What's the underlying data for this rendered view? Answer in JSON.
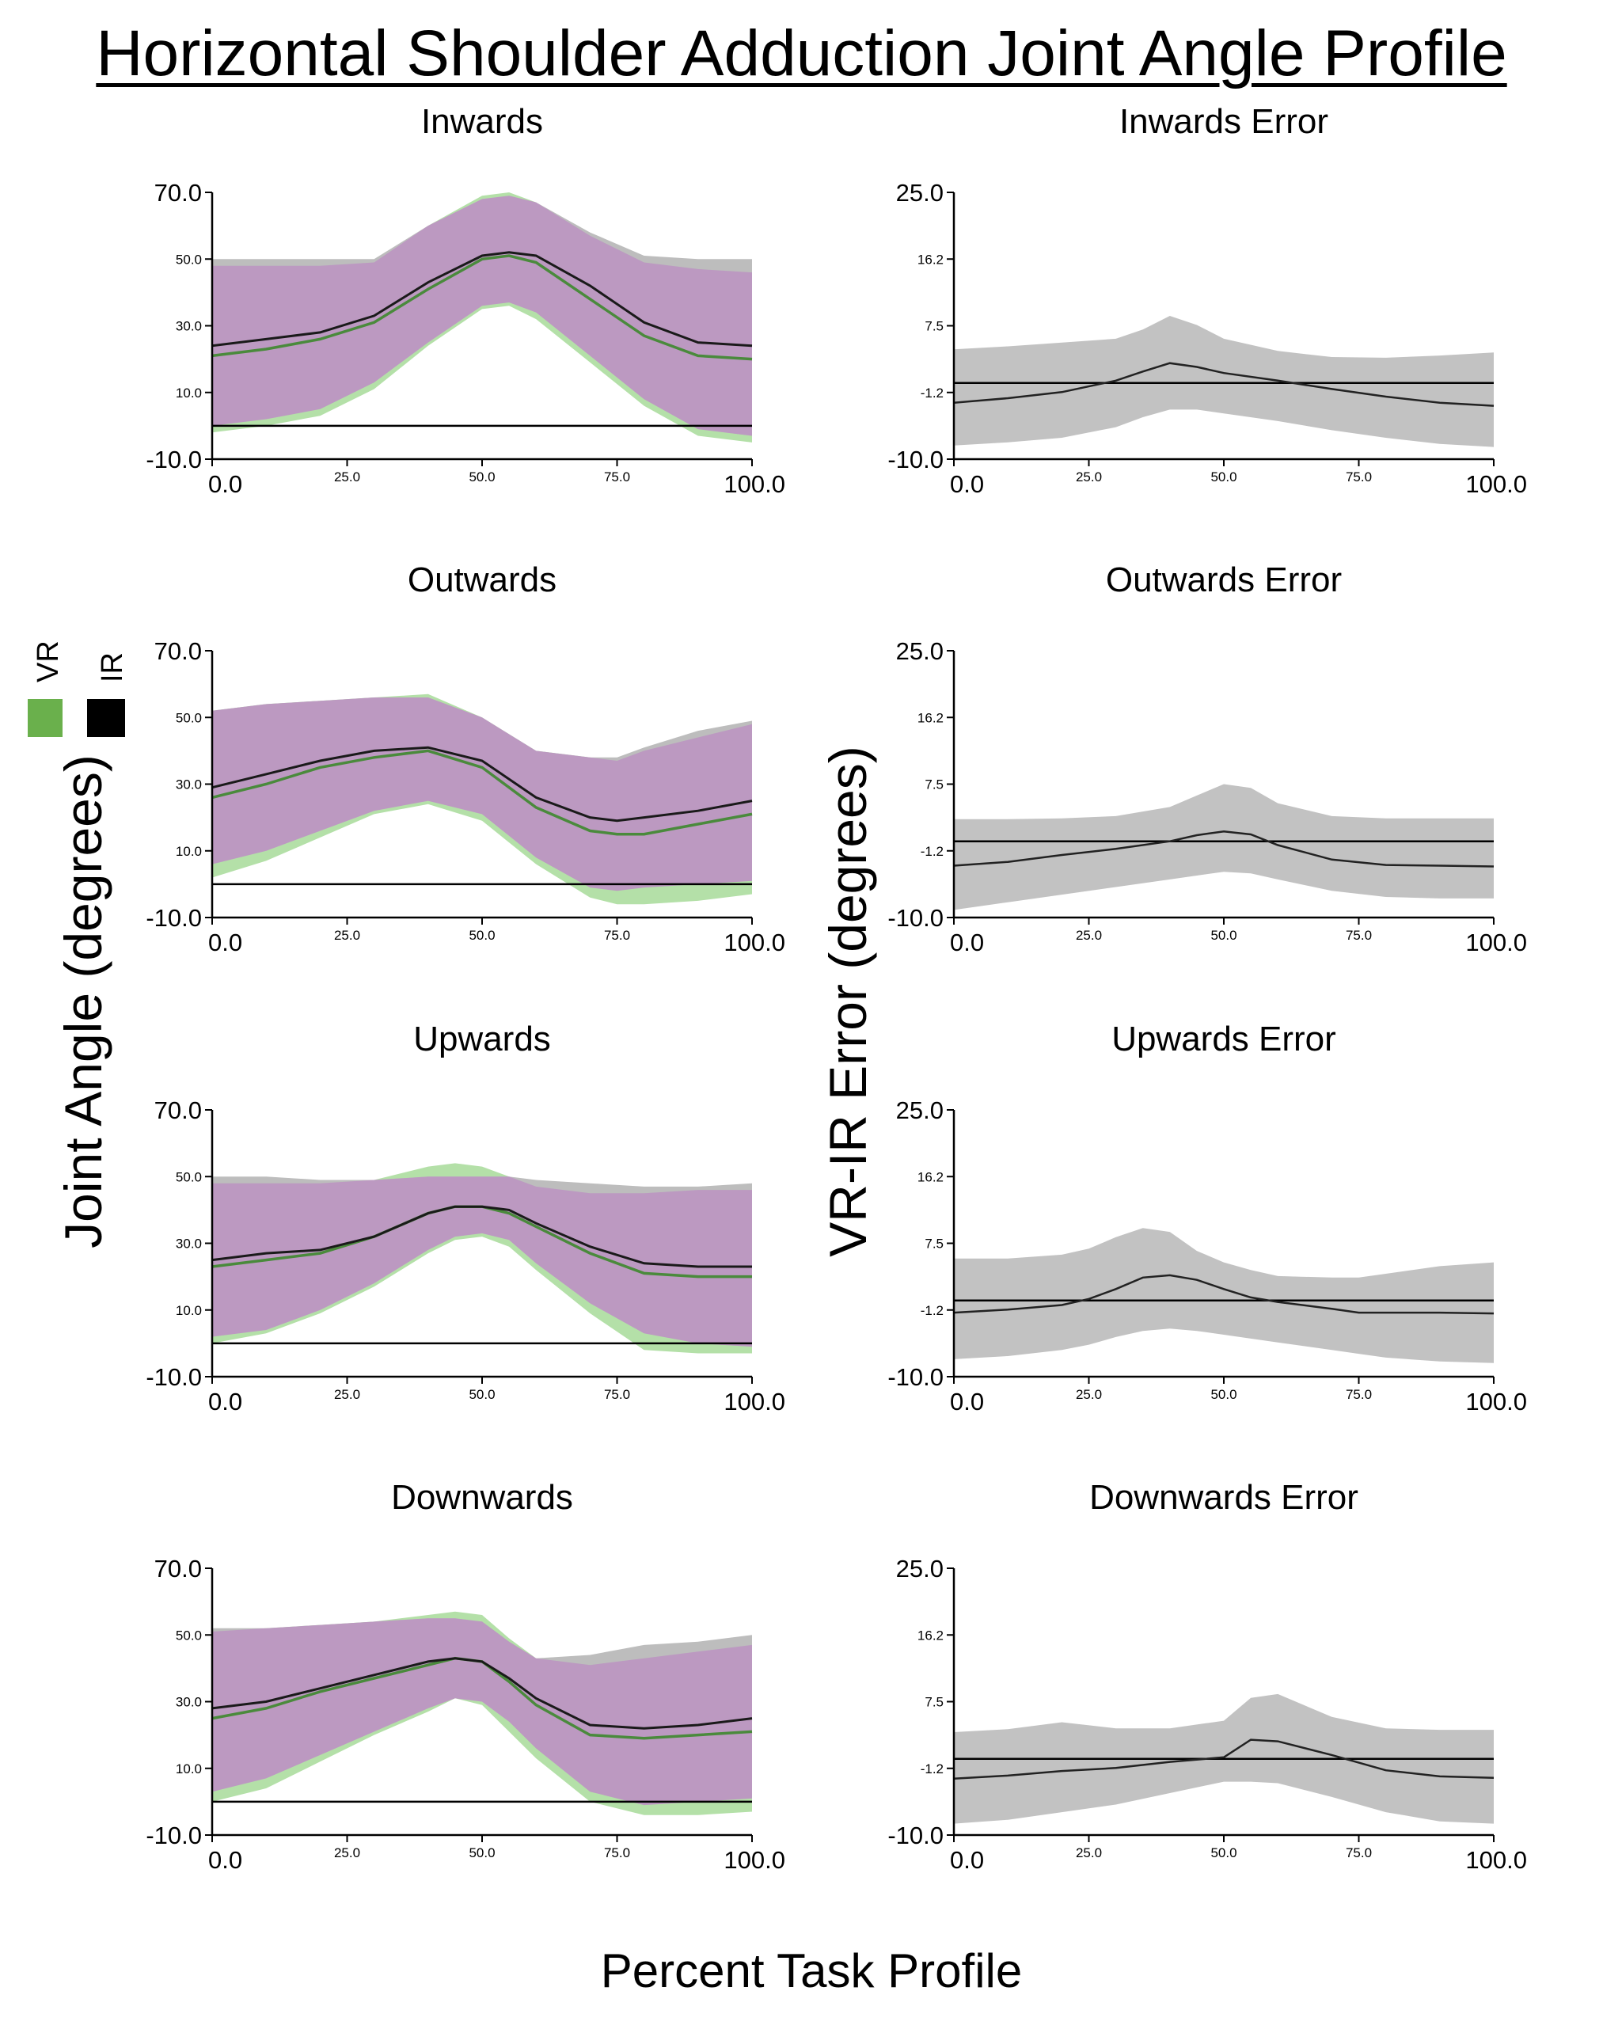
{
  "figure_title": "Horizontal Shoulder Adduction Joint Angle Profile",
  "x_axis_label": "Percent Task Profile",
  "left_axis_label": "Joint Angle (degrees)",
  "right_axis_label": "VR-IR Error (degrees)",
  "legend": [
    {
      "label": "VR",
      "color": "#6ab04c"
    },
    {
      "label": "IR",
      "color": "#000000"
    }
  ],
  "colors": {
    "vr_band": "#b4e0a8",
    "ir_band": "#bdbdbd",
    "overlap_band": "#bc99c1",
    "vr_line": "#4a8a3c",
    "ir_line": "#1a1a1a",
    "error_band": "#c2c2c2",
    "error_line": "#222222",
    "reference_line": "#000000"
  },
  "chart_data": [
    {
      "type": "line",
      "id": "inwards",
      "title": "Inwards",
      "panel": "angle",
      "x": [
        0,
        10,
        20,
        30,
        40,
        50,
        55,
        60,
        70,
        80,
        90,
        100
      ],
      "xlim": [
        0,
        100
      ],
      "ylim": [
        -10,
        70
      ],
      "xticks": [
        "0.0",
        "25.0",
        "50.0",
        "75.0",
        "100.0"
      ],
      "yticks": [
        "-10.0",
        "10.0",
        "30.0",
        "50.0",
        "70.0"
      ],
      "reference_line": 0,
      "series": [
        {
          "name": "VR mean",
          "values": [
            21,
            23,
            26,
            31,
            41,
            50,
            51,
            49,
            38,
            27,
            21,
            20
          ],
          "upper": [
            48,
            48,
            48,
            49,
            60,
            69,
            70,
            67,
            57,
            49,
            47,
            46
          ],
          "lower": [
            -2,
            0,
            3,
            11,
            24,
            35,
            36,
            32,
            19,
            6,
            -3,
            -5
          ]
        },
        {
          "name": "IR mean",
          "values": [
            24,
            26,
            28,
            33,
            43,
            51,
            52,
            51,
            42,
            31,
            25,
            24
          ],
          "upper": [
            50,
            50,
            50,
            50,
            60,
            68,
            69,
            67,
            58,
            51,
            50,
            50
          ],
          "lower": [
            0,
            2,
            5,
            13,
            25,
            36,
            37,
            34,
            21,
            8,
            -1,
            -3
          ]
        }
      ]
    },
    {
      "type": "line",
      "id": "inwards-error",
      "title": "Inwards Error",
      "panel": "error",
      "x": [
        0,
        10,
        20,
        30,
        35,
        40,
        45,
        50,
        60,
        70,
        80,
        90,
        100
      ],
      "xlim": [
        0,
        100
      ],
      "ylim": [
        -10,
        25
      ],
      "xticks": [
        "0.0",
        "25.0",
        "50.0",
        "75.0",
        "100.0"
      ],
      "yticks": [
        "-10.0",
        "-1.2",
        "7.5",
        "16.2",
        "25.0"
      ],
      "reference_line": 0,
      "series": [
        {
          "name": "VR-IR error",
          "values": [
            -2.6,
            -2.0,
            -1.2,
            0.3,
            1.5,
            2.6,
            2.1,
            1.3,
            0.3,
            -0.8,
            -1.8,
            -2.6,
            -3.0
          ],
          "upper": [
            4.4,
            4.8,
            5.3,
            5.8,
            7.0,
            8.8,
            7.6,
            5.8,
            4.2,
            3.4,
            3.3,
            3.6,
            4.0
          ],
          "lower": [
            -8.2,
            -7.8,
            -7.2,
            -5.8,
            -4.5,
            -3.5,
            -3.5,
            -4.0,
            -5.0,
            -6.2,
            -7.2,
            -8.0,
            -8.4
          ]
        }
      ]
    },
    {
      "type": "line",
      "id": "outwards",
      "title": "Outwards",
      "panel": "angle",
      "x": [
        0,
        10,
        20,
        30,
        40,
        50,
        60,
        70,
        75,
        80,
        90,
        100
      ],
      "xlim": [
        0,
        100
      ],
      "ylim": [
        -10,
        70
      ],
      "xticks": [
        "0.0",
        "25.0",
        "50.0",
        "75.0",
        "100.0"
      ],
      "yticks": [
        "-10.0",
        "10.0",
        "30.0",
        "50.0",
        "70.0"
      ],
      "reference_line": 0,
      "series": [
        {
          "name": "VR mean",
          "values": [
            26,
            30,
            35,
            38,
            40,
            35,
            23,
            16,
            15,
            15,
            18,
            21
          ],
          "upper": [
            52,
            54,
            55,
            56,
            57,
            50,
            40,
            38,
            37,
            40,
            44,
            48
          ],
          "lower": [
            2,
            7,
            14,
            21,
            24,
            19,
            6,
            -4,
            -6,
            -6,
            -5,
            -3
          ]
        },
        {
          "name": "IR mean",
          "values": [
            29,
            33,
            37,
            40,
            41,
            37,
            26,
            20,
            19,
            20,
            22,
            25
          ],
          "upper": [
            52,
            54,
            55,
            56,
            56,
            50,
            40,
            38,
            38,
            41,
            46,
            49
          ],
          "lower": [
            6,
            10,
            16,
            22,
            25,
            21,
            8,
            -1,
            -2,
            -1,
            0,
            1
          ]
        }
      ]
    },
    {
      "type": "line",
      "id": "outwards-error",
      "title": "Outwards Error",
      "panel": "error",
      "x": [
        0,
        10,
        20,
        30,
        40,
        45,
        50,
        55,
        60,
        70,
        80,
        90,
        100
      ],
      "xlim": [
        0,
        100
      ],
      "ylim": [
        -10,
        25
      ],
      "xticks": [
        "0.0",
        "25.0",
        "50.0",
        "75.0",
        "100.0"
      ],
      "yticks": [
        "-10.0",
        "-1.2",
        "7.5",
        "16.2",
        "25.0"
      ],
      "reference_line": 0,
      "series": [
        {
          "name": "VR-IR error",
          "values": [
            -3.2,
            -2.7,
            -1.8,
            -1.0,
            0.0,
            0.8,
            1.3,
            0.9,
            -0.5,
            -2.4,
            -3.1,
            -3.2,
            -3.3
          ],
          "upper": [
            2.9,
            2.9,
            3.0,
            3.3,
            4.5,
            6.0,
            7.5,
            7.0,
            5.0,
            3.3,
            3.0,
            3.0,
            3.0
          ],
          "lower": [
            -9.0,
            -8.0,
            -7.0,
            -6.0,
            -5.0,
            -4.5,
            -4.0,
            -4.2,
            -5.0,
            -6.5,
            -7.3,
            -7.5,
            -7.5
          ]
        }
      ]
    },
    {
      "type": "line",
      "id": "upwards",
      "title": "Upwards",
      "panel": "angle",
      "x": [
        0,
        10,
        20,
        30,
        40,
        45,
        50,
        55,
        60,
        70,
        80,
        90,
        100
      ],
      "xlim": [
        0,
        100
      ],
      "ylim": [
        -10,
        70
      ],
      "xticks": [
        "0.0",
        "25.0",
        "50.0",
        "75.0",
        "100.0"
      ],
      "yticks": [
        "-10.0",
        "10.0",
        "30.0",
        "50.0",
        "70.0"
      ],
      "reference_line": 0,
      "series": [
        {
          "name": "VR mean",
          "values": [
            23,
            25,
            27,
            32,
            39,
            41,
            41,
            39,
            35,
            27,
            21,
            20,
            20
          ],
          "upper": [
            48,
            48,
            48,
            49,
            53,
            54,
            53,
            50,
            47,
            45,
            45,
            46,
            46
          ],
          "lower": [
            0,
            3,
            9,
            17,
            27,
            31,
            32,
            29,
            22,
            9,
            -2,
            -3,
            -3
          ]
        },
        {
          "name": "IR mean",
          "values": [
            25,
            27,
            28,
            32,
            39,
            41,
            41,
            40,
            36,
            29,
            24,
            23,
            23
          ],
          "upper": [
            50,
            50,
            49,
            49,
            50,
            50,
            50,
            50,
            49,
            48,
            47,
            47,
            48
          ],
          "lower": [
            2,
            4,
            10,
            18,
            28,
            32,
            33,
            31,
            24,
            12,
            3,
            0,
            -1
          ]
        }
      ]
    },
    {
      "type": "line",
      "id": "upwards-error",
      "title": "Upwards Error",
      "panel": "error",
      "x": [
        0,
        10,
        20,
        25,
        30,
        35,
        40,
        45,
        50,
        55,
        60,
        70,
        75,
        80,
        90,
        100
      ],
      "xlim": [
        0,
        100
      ],
      "ylim": [
        -10,
        25
      ],
      "xticks": [
        "0.0",
        "25.0",
        "50.0",
        "75.0",
        "100.0"
      ],
      "yticks": [
        "-10.0",
        "-1.2",
        "7.5",
        "16.2",
        "25.0"
      ],
      "reference_line": 0,
      "series": [
        {
          "name": "VR-IR error",
          "values": [
            -1.6,
            -1.2,
            -0.6,
            0.2,
            1.5,
            3.0,
            3.3,
            2.7,
            1.5,
            0.4,
            -0.2,
            -1.1,
            -1.6,
            -1.6,
            -1.6,
            -1.7
          ],
          "upper": [
            5.5,
            5.5,
            6.0,
            6.8,
            8.3,
            9.5,
            9.0,
            6.5,
            5.0,
            4.0,
            3.2,
            3.0,
            3.0,
            3.5,
            4.5,
            5.0
          ],
          "lower": [
            -7.7,
            -7.3,
            -6.5,
            -5.8,
            -4.8,
            -4.0,
            -3.7,
            -4.0,
            -4.5,
            -5.0,
            -5.5,
            -6.5,
            -7.0,
            -7.5,
            -8.0,
            -8.2
          ]
        }
      ]
    },
    {
      "type": "line",
      "id": "downwards",
      "title": "Downwards",
      "panel": "angle",
      "x": [
        0,
        10,
        20,
        30,
        40,
        45,
        50,
        55,
        60,
        70,
        80,
        90,
        100
      ],
      "xlim": [
        0,
        100
      ],
      "ylim": [
        -10,
        70
      ],
      "xticks": [
        "0.0",
        "25.0",
        "50.0",
        "75.0",
        "100.0"
      ],
      "yticks": [
        "-10.0",
        "10.0",
        "30.0",
        "50.0",
        "70.0"
      ],
      "reference_line": 0,
      "series": [
        {
          "name": "VR mean",
          "values": [
            25,
            28,
            33,
            37,
            41,
            43,
            42,
            36,
            29,
            20,
            19,
            20,
            21
          ],
          "upper": [
            51,
            52,
            53,
            54,
            56,
            57,
            56,
            49,
            43,
            41,
            43,
            45,
            47
          ],
          "lower": [
            0,
            4,
            12,
            20,
            27,
            31,
            29,
            21,
            13,
            0,
            -4,
            -4,
            -3
          ]
        },
        {
          "name": "IR mean",
          "values": [
            28,
            30,
            34,
            38,
            42,
            43,
            42,
            37,
            31,
            23,
            22,
            23,
            25
          ],
          "upper": [
            52,
            52,
            53,
            54,
            55,
            55,
            54,
            48,
            43,
            44,
            47,
            48,
            50
          ],
          "lower": [
            3,
            7,
            14,
            21,
            28,
            31,
            30,
            24,
            16,
            3,
            -1,
            0,
            1
          ]
        }
      ]
    },
    {
      "type": "line",
      "id": "downwards-error",
      "title": "Downwards Error",
      "panel": "error",
      "x": [
        0,
        10,
        20,
        30,
        40,
        50,
        55,
        60,
        70,
        80,
        90,
        100
      ],
      "xlim": [
        0,
        100
      ],
      "ylim": [
        -10,
        25
      ],
      "xticks": [
        "0.0",
        "25.0",
        "50.0",
        "75.0",
        "100.0"
      ],
      "yticks": [
        "-10.0",
        "-1.2",
        "7.5",
        "16.2",
        "25.0"
      ],
      "reference_line": 0,
      "series": [
        {
          "name": "VR-IR error",
          "values": [
            -2.6,
            -2.2,
            -1.6,
            -1.2,
            -0.4,
            0.2,
            2.5,
            2.3,
            0.5,
            -1.5,
            -2.3,
            -2.5
          ],
          "upper": [
            3.5,
            3.9,
            4.8,
            4.0,
            4.0,
            5.0,
            8.0,
            8.5,
            5.5,
            4.0,
            3.8,
            3.8
          ],
          "lower": [
            -8.5,
            -8.0,
            -7.0,
            -6.0,
            -4.5,
            -3.0,
            -3.0,
            -3.2,
            -5.0,
            -7.0,
            -8.2,
            -8.5
          ]
        }
      ]
    }
  ]
}
